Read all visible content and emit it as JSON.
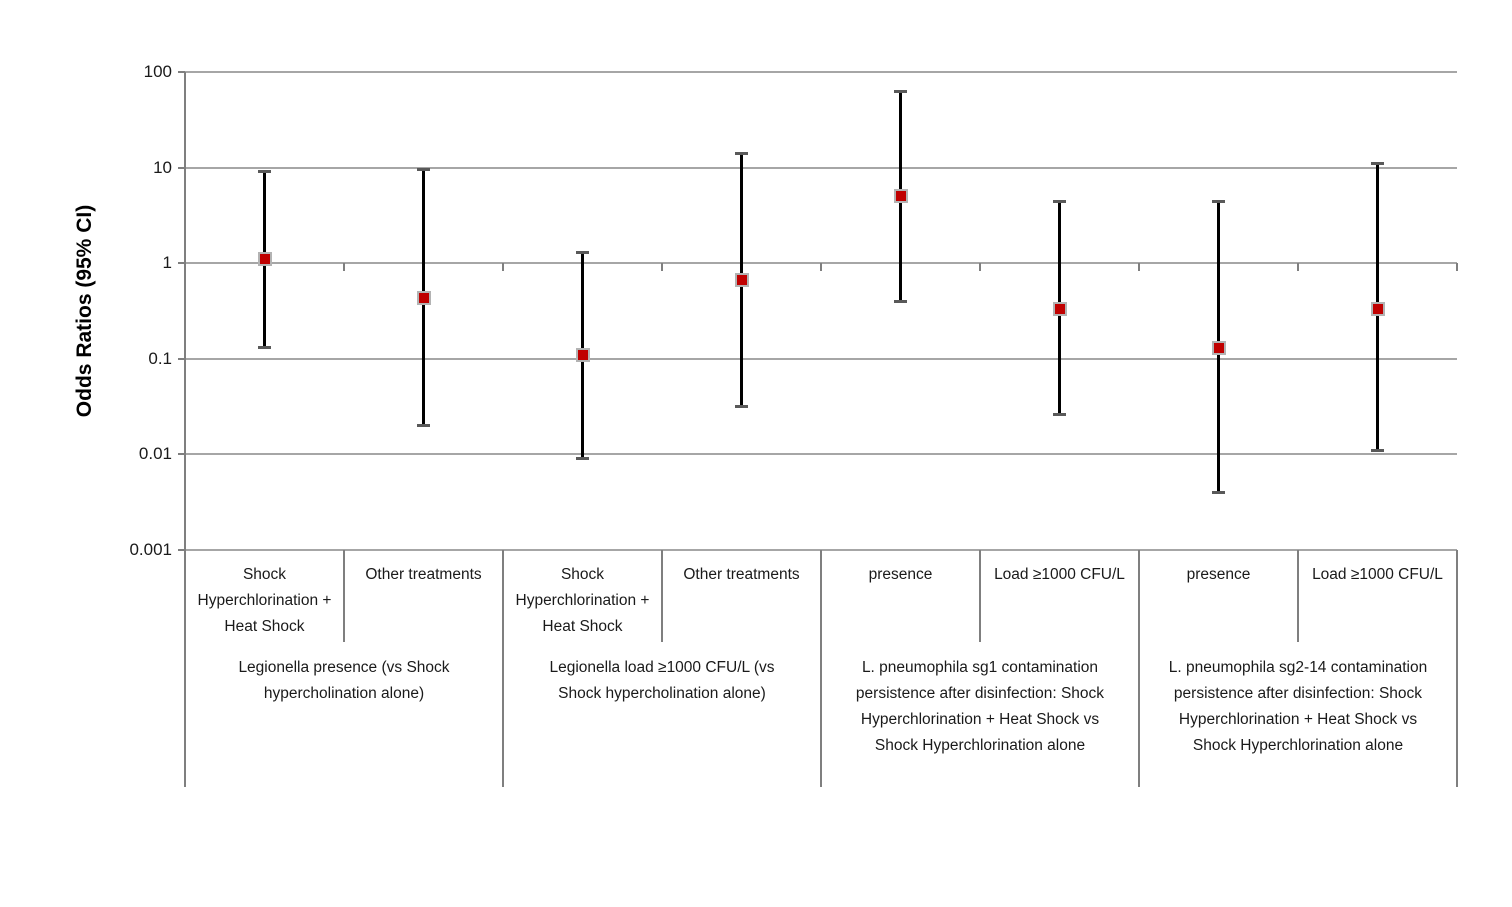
{
  "chart_data": {
    "type": "scatter",
    "subtype": "forest-plot-odds-ratios",
    "title": "",
    "xlabel": "",
    "ylabel": "Odds Ratios (95% CI)",
    "yscale": "log",
    "ylim": [
      0.001,
      100
    ],
    "ytick_labels": [
      "100",
      "10",
      "1",
      "0.1",
      "0.01",
      "0.001"
    ],
    "grid": "horizontal-on",
    "legend": "none",
    "colors": {
      "marker": "#c00000",
      "marker_border": "#b3b3b3",
      "error_bar": "#000000",
      "error_bar_cap": "#595959",
      "gridline": "#a6a6a6",
      "axis": "#7f7f7f"
    },
    "groups": [
      {
        "label": "Legionella presence (vs Shock hypercholination alone)",
        "points": [
          {
            "label": "Shock Hyperchlorination + Heat Shock",
            "or": 1.1,
            "ci_low": 0.13,
            "ci_high": 9.0
          },
          {
            "label": "Other treatments",
            "or": 0.43,
            "ci_low": 0.02,
            "ci_high": 9.5
          }
        ]
      },
      {
        "label": "Legionella load ≥1000 CFU/L (vs Shock hypercholination alone)",
        "points": [
          {
            "label": "Shock Hyperchlorination + Heat Shock",
            "or": 0.11,
            "ci_low": 0.009,
            "ci_high": 1.3
          },
          {
            "label": "Other treatments",
            "or": 0.67,
            "ci_low": 0.032,
            "ci_high": 14
          }
        ]
      },
      {
        "label": "L. pneumophila sg1 contamination persistence after disinfection: Shock Hyperchlorination + Heat Shock vs Shock Hyperchlorination alone",
        "points": [
          {
            "label": "presence",
            "or": 5.0,
            "ci_low": 0.4,
            "ci_high": 63
          },
          {
            "label": "Load ≥1000 CFU/L",
            "or": 0.33,
            "ci_low": 0.026,
            "ci_high": 4.4
          }
        ]
      },
      {
        "label": "L. pneumophila sg2-14 contamination persistence after disinfection: Shock Hyperchlorination + Heat Shock vs Shock Hyperchlorination alone",
        "points": [
          {
            "label": "presence",
            "or": 0.13,
            "ci_low": 0.004,
            "ci_high": 4.4
          },
          {
            "label": "Load ≥1000 CFU/L",
            "or": 0.33,
            "ci_low": 0.011,
            "ci_high": 11
          }
        ]
      }
    ]
  }
}
